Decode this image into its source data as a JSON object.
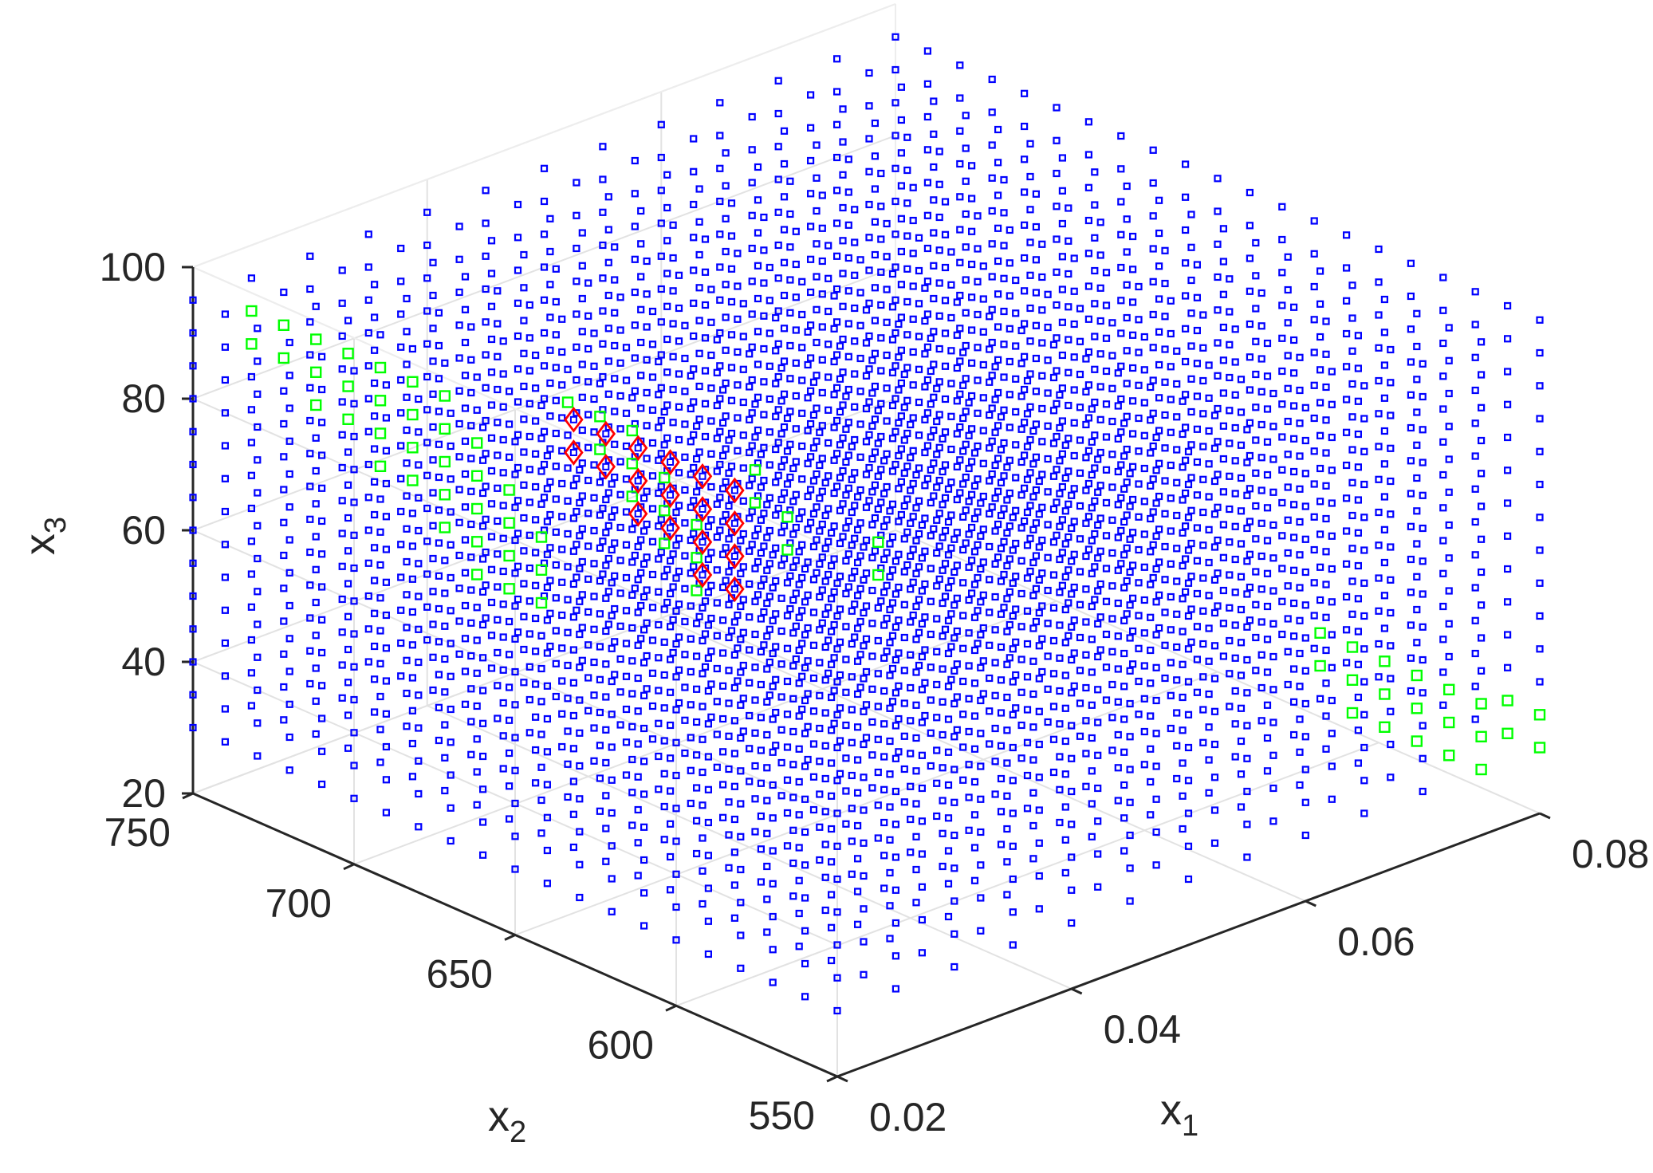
{
  "chart_data": {
    "type": "scatter3d",
    "xlabel": "x",
    "xlabel_sub": "1",
    "ylabel": "x",
    "ylabel_sub": "2",
    "zlabel": "x",
    "zlabel_sub": "3",
    "xlim": [
      0.02,
      0.08
    ],
    "ylim": [
      550,
      750
    ],
    "zlim": [
      20,
      100
    ],
    "x_ticks": [
      "0.02",
      "0.04",
      "0.06",
      "0.08"
    ],
    "y_ticks": [
      "550",
      "600",
      "650",
      "700",
      "750"
    ],
    "z_ticks": [
      "20",
      "40",
      "60",
      "80",
      "100"
    ],
    "grid": true,
    "grid_levels": {
      "x1": [
        0.02,
        0.025,
        0.03,
        0.035,
        0.04,
        0.045,
        0.05,
        0.055,
        0.06,
        0.065,
        0.07,
        0.075,
        0.08
      ],
      "x2": [
        550,
        560,
        570,
        580,
        590,
        600,
        610,
        620,
        630,
        640,
        650,
        660,
        670,
        680,
        690,
        700,
        710,
        720,
        730,
        740,
        750
      ],
      "x3": [
        30,
        35,
        40,
        45,
        50,
        55,
        60,
        65,
        70,
        75,
        80,
        85,
        90,
        95
      ]
    },
    "series": [
      {
        "marker": "small square",
        "color": "#0000FF",
        "rule": "all grid points not in the other two series"
      },
      {
        "marker": "square",
        "color": "#00FF00",
        "points": [
          [
            0.025,
            750,
            85
          ],
          [
            0.025,
            750,
            90
          ],
          [
            0.025,
            740,
            85
          ],
          [
            0.025,
            740,
            90
          ],
          [
            0.025,
            730,
            80
          ],
          [
            0.025,
            730,
            85
          ],
          [
            0.025,
            730,
            90
          ],
          [
            0.025,
            720,
            80
          ],
          [
            0.025,
            720,
            85
          ],
          [
            0.025,
            720,
            90
          ],
          [
            0.025,
            710,
            75
          ],
          [
            0.025,
            710,
            80
          ],
          [
            0.025,
            710,
            85
          ],
          [
            0.025,
            710,
            90
          ],
          [
            0.025,
            700,
            75
          ],
          [
            0.025,
            700,
            80
          ],
          [
            0.025,
            700,
            85
          ],
          [
            0.025,
            700,
            90
          ],
          [
            0.025,
            690,
            70
          ],
          [
            0.025,
            690,
            75
          ],
          [
            0.025,
            690,
            80
          ],
          [
            0.025,
            690,
            85
          ],
          [
            0.025,
            690,
            90
          ],
          [
            0.025,
            680,
            65
          ],
          [
            0.025,
            680,
            70
          ],
          [
            0.025,
            680,
            75
          ],
          [
            0.025,
            680,
            80
          ],
          [
            0.025,
            680,
            85
          ],
          [
            0.025,
            670,
            65
          ],
          [
            0.025,
            670,
            70
          ],
          [
            0.025,
            670,
            75
          ],
          [
            0.025,
            670,
            80
          ],
          [
            0.025,
            660,
            65
          ],
          [
            0.025,
            660,
            70
          ],
          [
            0.025,
            660,
            75
          ],
          [
            0.03,
            670,
            90
          ],
          [
            0.03,
            660,
            85
          ],
          [
            0.03,
            660,
            90
          ],
          [
            0.03,
            650,
            80
          ],
          [
            0.03,
            650,
            85
          ],
          [
            0.03,
            650,
            90
          ],
          [
            0.03,
            640,
            75
          ],
          [
            0.03,
            640,
            80
          ],
          [
            0.03,
            640,
            85
          ],
          [
            0.03,
            630,
            70
          ],
          [
            0.03,
            630,
            75
          ],
          [
            0.03,
            630,
            80
          ],
          [
            0.035,
            630,
            80
          ],
          [
            0.035,
            630,
            85
          ],
          [
            0.035,
            620,
            75
          ],
          [
            0.035,
            620,
            80
          ],
          [
            0.04,
            610,
            70
          ],
          [
            0.04,
            610,
            75
          ],
          [
            0.075,
            600,
            35
          ],
          [
            0.075,
            600,
            40
          ],
          [
            0.075,
            590,
            30
          ],
          [
            0.075,
            590,
            35
          ],
          [
            0.075,
            590,
            40
          ],
          [
            0.075,
            580,
            30
          ],
          [
            0.075,
            580,
            35
          ],
          [
            0.075,
            580,
            40
          ],
          [
            0.075,
            570,
            30
          ],
          [
            0.075,
            570,
            35
          ],
          [
            0.075,
            570,
            40
          ],
          [
            0.075,
            560,
            30
          ],
          [
            0.075,
            560,
            35
          ],
          [
            0.075,
            560,
            40
          ],
          [
            0.075,
            550,
            30
          ],
          [
            0.075,
            550,
            35
          ],
          [
            0.075,
            550,
            40
          ],
          [
            0.08,
            560,
            30
          ],
          [
            0.08,
            560,
            35
          ],
          [
            0.08,
            550,
            30
          ],
          [
            0.08,
            550,
            35
          ]
        ]
      },
      {
        "marker": "diamond",
        "color": "#FF0000",
        "points": [
          [
            0.025,
            650,
            90
          ],
          [
            0.025,
            650,
            95
          ],
          [
            0.025,
            640,
            90
          ],
          [
            0.025,
            640,
            95
          ],
          [
            0.025,
            630,
            85
          ],
          [
            0.025,
            630,
            90
          ],
          [
            0.025,
            630,
            95
          ],
          [
            0.025,
            620,
            85
          ],
          [
            0.025,
            620,
            90
          ],
          [
            0.025,
            620,
            95
          ],
          [
            0.025,
            610,
            80
          ],
          [
            0.025,
            610,
            85
          ],
          [
            0.025,
            610,
            90
          ],
          [
            0.025,
            610,
            95
          ],
          [
            0.025,
            600,
            80
          ],
          [
            0.025,
            600,
            85
          ],
          [
            0.025,
            600,
            90
          ],
          [
            0.025,
            600,
            95
          ]
        ]
      }
    ]
  }
}
